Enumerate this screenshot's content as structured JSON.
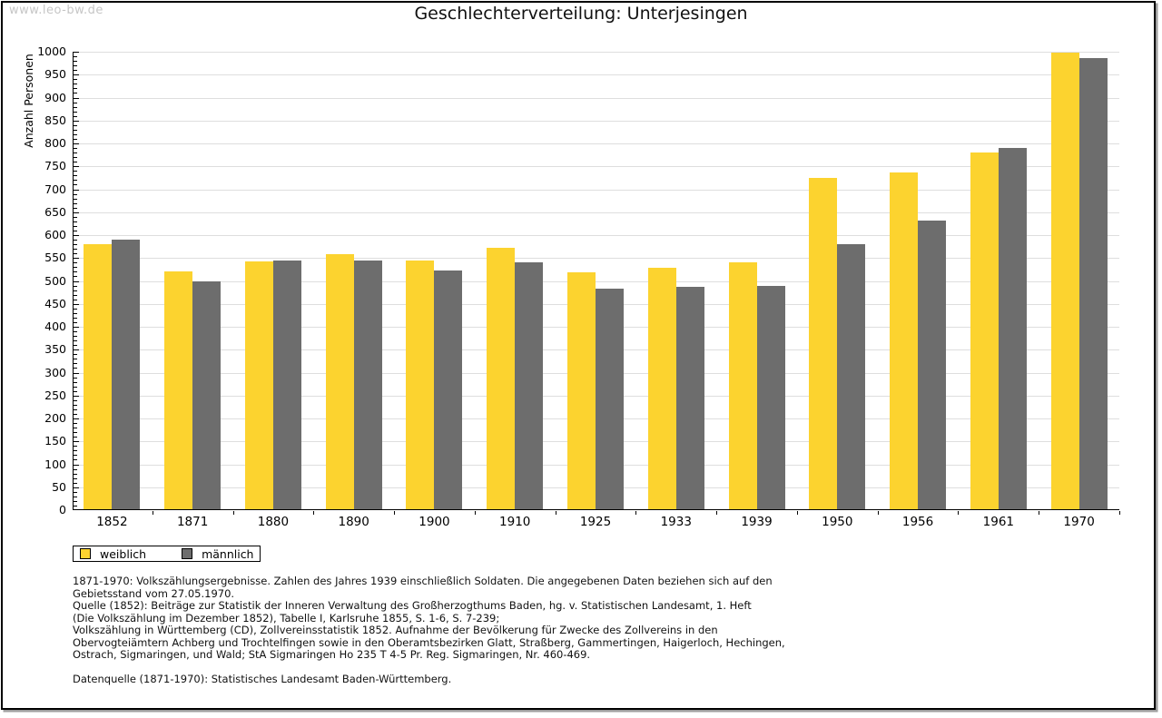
{
  "page": {
    "watermark": "www.leo-bw.de",
    "title": "Geschlechterverteilung: Unterjesingen"
  },
  "chart_data": {
    "type": "bar",
    "title": "Geschlechterverteilung: Unterjesingen",
    "xlabel": "",
    "ylabel": "Anzahl Personen",
    "ylim": [
      0,
      1000
    ],
    "ytick_step": 50,
    "yminor_step": 10,
    "grid": true,
    "legend_position": "bottom-left",
    "categories": [
      "1852",
      "1871",
      "1880",
      "1890",
      "1900",
      "1910",
      "1925",
      "1933",
      "1939",
      "1950",
      "1956",
      "1961",
      "1970"
    ],
    "series": [
      {
        "name": "weiblich",
        "color": "#fcd32f",
        "values": [
          580,
          520,
          542,
          559,
          544,
          573,
          519,
          529,
          541,
          724,
          737,
          781,
          998
        ]
      },
      {
        "name": "männlich",
        "color": "#6d6d6d",
        "values": [
          590,
          500,
          545,
          545,
          523,
          541,
          483,
          487,
          490,
          581,
          632,
          791,
          986
        ]
      }
    ],
    "axis_color": "#000000",
    "gridline_color": "#dedede"
  },
  "footer": {
    "lines": [
      "1871-1970: Volkszählungsergebnisse. Zahlen des Jahres 1939 einschließlich Soldaten. Die angegebenen Daten beziehen sich auf den",
      "Gebietsstand vom 27.05.1970.",
      "Quelle (1852): Beiträge zur Statistik der Inneren Verwaltung des Großherzogthums Baden, hg. v. Statistischen Landesamt, 1. Heft",
      "(Die Volkszählung im Dezember 1852), Tabelle I, Karlsruhe 1855, S. 1-6, S. 7-239;",
      "Volkszählung in Württemberg (CD), Zollvereinsstatistik 1852. Aufnahme der Bevölkerung für Zwecke des Zollvereins in den",
      "Obervogteiämtern Achberg und Trochtelfingen sowie in den Oberamtsbezirken Glatt, Straßberg, Gammertingen, Haigerloch, Hechingen,",
      "Ostrach, Sigmaringen, und Wald; StA Sigmaringen Ho 235 T 4-5 Pr. Reg. Sigmaringen, Nr. 460-469.",
      "",
      "Datenquelle (1871-1970): Statistisches Landesamt Baden-Württemberg."
    ]
  }
}
